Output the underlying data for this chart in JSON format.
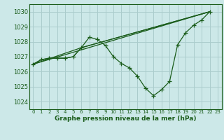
{
  "title": "Graphe pression niveau de la mer (hPa)",
  "bg_color": "#cce8e8",
  "grid_color": "#aacccc",
  "line_color": "#1a5c1a",
  "xlim": [
    -0.5,
    23.5
  ],
  "ylim": [
    1023.5,
    1030.5
  ],
  "yticks": [
    1024,
    1025,
    1026,
    1027,
    1028,
    1029,
    1030
  ],
  "xticks": [
    0,
    1,
    2,
    3,
    4,
    5,
    6,
    7,
    8,
    9,
    10,
    11,
    12,
    13,
    14,
    15,
    16,
    17,
    18,
    19,
    20,
    21,
    22,
    23
  ],
  "series": [
    {
      "x": [
        0,
        1,
        2,
        3,
        4,
        5,
        6,
        7,
        8,
        9,
        10,
        11,
        12,
        13,
        14,
        15,
        16,
        17,
        18,
        19,
        20,
        21,
        22
      ],
      "y": [
        1026.5,
        1026.8,
        1026.9,
        1026.9,
        1026.9,
        1027.0,
        1027.6,
        1028.3,
        1028.15,
        1027.75,
        1027.0,
        1026.55,
        1026.25,
        1025.7,
        1024.9,
        1024.4,
        1024.8,
        1025.35,
        1027.8,
        1028.6,
        1029.1,
        1029.45,
        1030.0
      ],
      "has_marker": true
    },
    {
      "x": [
        0,
        1,
        2,
        3,
        4,
        5,
        6,
        22
      ],
      "y": [
        1026.5,
        1026.8,
        1026.9,
        1026.9,
        1026.9,
        1027.0,
        1027.6,
        1030.0
      ],
      "has_marker": false
    },
    {
      "x": [
        0,
        6,
        22
      ],
      "y": [
        1026.5,
        1027.6,
        1030.0
      ],
      "has_marker": false
    },
    {
      "x": [
        0,
        22
      ],
      "y": [
        1026.5,
        1030.0
      ],
      "has_marker": false
    }
  ],
  "marker": "+",
  "markersize": 4,
  "linewidth": 0.9
}
